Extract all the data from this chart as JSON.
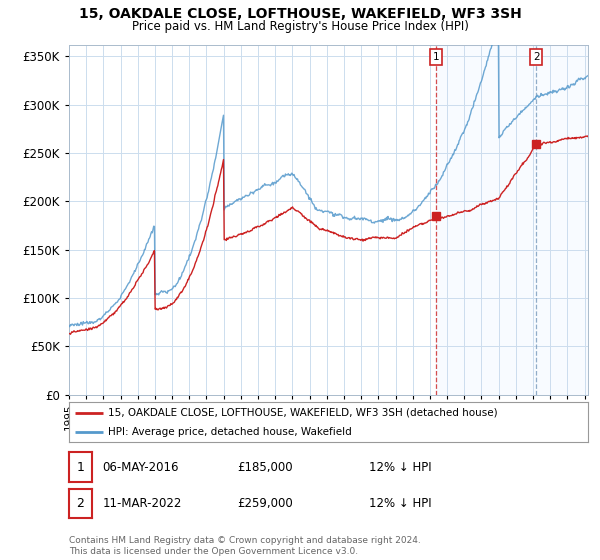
{
  "title": "15, OAKDALE CLOSE, LOFTHOUSE, WAKEFIELD, WF3 3SH",
  "subtitle": "Price paid vs. HM Land Registry's House Price Index (HPI)",
  "ylabel_ticks": [
    "£0",
    "£50K",
    "£100K",
    "£150K",
    "£200K",
    "£250K",
    "£300K",
    "£350K"
  ],
  "ytick_values": [
    0,
    50000,
    100000,
    150000,
    200000,
    250000,
    300000,
    350000
  ],
  "ylim": [
    0,
    362000
  ],
  "xlim_start": 1995,
  "xlim_end": 2025.2,
  "hpi_color": "#5599cc",
  "price_color": "#cc2222",
  "shade_color": "#ddeeff",
  "legend_label_price": "15, OAKDALE CLOSE, LOFTHOUSE, WAKEFIELD, WF3 3SH (detached house)",
  "legend_label_hpi": "HPI: Average price, detached house, Wakefield",
  "sale1_year": 2016.37,
  "sale1_price": 185000,
  "sale1_date": "06-MAY-2016",
  "sale1_price_str": "£185,000",
  "sale1_pct": "12% ↓ HPI",
  "sale2_year": 2022.18,
  "sale2_price": 259000,
  "sale2_date": "11-MAR-2022",
  "sale2_price_str": "£259,000",
  "sale2_pct": "12% ↓ HPI",
  "footer": "Contains HM Land Registry data © Crown copyright and database right 2024.\nThis data is licensed under the Open Government Licence v3.0.",
  "bg_color": "#ffffff",
  "grid_color": "#ccddee"
}
